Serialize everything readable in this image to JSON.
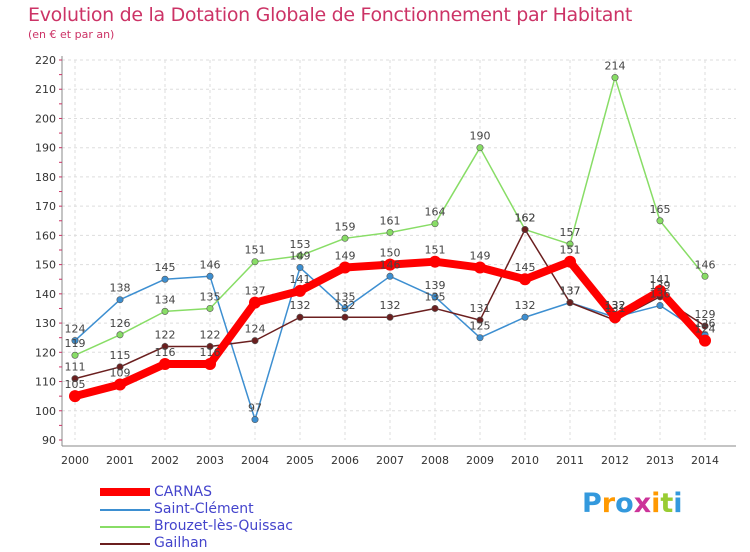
{
  "chart_data": {
    "type": "line",
    "title": "Evolution de la Dotation Globale de Fonctionnement par Habitant",
    "subtitle": "(en € et par an)",
    "categories": [
      "2000",
      "2001",
      "2002",
      "2003",
      "2004",
      "2005",
      "2006",
      "2007",
      "2008",
      "2009",
      "2010",
      "2011",
      "2012",
      "2013",
      "2014"
    ],
    "ylim": [
      90,
      220
    ],
    "yticks": [
      "90",
      "100",
      "110",
      "120",
      "130",
      "140",
      "150",
      "160",
      "170",
      "180",
      "190",
      "200",
      "210",
      "220"
    ],
    "grid": true,
    "legend_position": "bottom-left",
    "series": [
      {
        "name": "CARNAS",
        "color": "#ff0000",
        "values": [
          105,
          109,
          116,
          116,
          137,
          141,
          149,
          150,
          151,
          149,
          145,
          151,
          132,
          141,
          124
        ],
        "labels": [
          "105",
          "109",
          "116",
          "116",
          "137",
          "141",
          "149",
          "150",
          "151",
          "149",
          "145",
          "151",
          "132",
          "141",
          "124"
        ]
      },
      {
        "name": "Saint-Clément",
        "color": "#3d8fd1",
        "values": [
          124,
          138,
          145,
          146,
          97,
          149,
          135,
          146,
          139,
          125,
          132,
          137,
          132,
          136,
          126
        ],
        "labels": [
          "124",
          "138",
          "145",
          "146",
          "97",
          "149",
          "135",
          "146",
          "139",
          "125",
          "132",
          "137",
          "132",
          "136",
          "126"
        ]
      },
      {
        "name": "Brouzet-lès-Quissac",
        "color": "#88dd66",
        "values": [
          119,
          126,
          134,
          135,
          151,
          153,
          159,
          161,
          164,
          190,
          162,
          157,
          214,
          165,
          146
        ],
        "labels": [
          "119",
          "126",
          "134",
          "135",
          "151",
          "153",
          "159",
          "161",
          "164",
          "190",
          "162",
          "157",
          "214",
          "165",
          "146"
        ]
      },
      {
        "name": "Gailhan",
        "color": "#6b1f1f",
        "values": [
          111,
          115,
          122,
          122,
          124,
          132,
          132,
          132,
          135,
          131,
          162,
          137,
          131,
          139,
          129
        ],
        "labels": [
          "111",
          "115",
          "122",
          "122",
          "124",
          "132",
          "132",
          "132",
          "135",
          "131",
          "162",
          "137",
          "131",
          "139",
          "129"
        ]
      }
    ]
  },
  "logo": {
    "letters": [
      "P",
      "r",
      "o",
      "x",
      "i",
      "t",
      "i"
    ],
    "colors": [
      "#3399dd",
      "#ff9900",
      "#3399dd",
      "#cc3399",
      "#ff9900",
      "#99cc33",
      "#3399dd"
    ]
  }
}
